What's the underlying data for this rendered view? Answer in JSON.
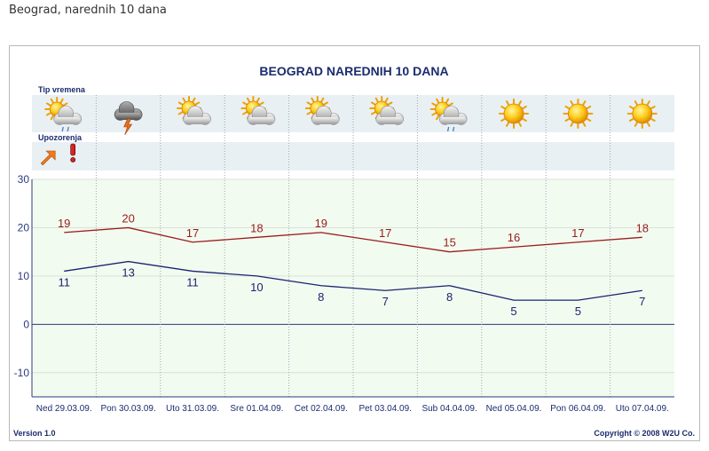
{
  "page": {
    "heading": "Beograd, narednih 10 dana"
  },
  "chart_data": {
    "type": "line",
    "title": "BEOGRAD NAREDNIH 10 DANA",
    "weather_row_label": "Tip vremena",
    "warnings_row_label": "Upozorenja",
    "categories": [
      "Ned 29.03.09.",
      "Pon 30.03.09.",
      "Uto 31.03.09.",
      "Sre 01.04.09.",
      "Cet 02.04.09.",
      "Pet 03.04.09.",
      "Sub 04.04.09.",
      "Ned 05.04.09.",
      "Pon 06.04.09.",
      "Uto 07.04.09."
    ],
    "weather_icons": [
      "partly-cloudy-rain-icon",
      "thunderstorm-icon",
      "partly-cloudy-icon",
      "partly-cloudy-icon",
      "partly-cloudy-icon",
      "partly-cloudy-icon",
      "partly-cloudy-rain-icon",
      "sunny-icon",
      "sunny-icon",
      "sunny-icon"
    ],
    "warnings": [
      [
        "wind-arrow-icon",
        "exclamation-icon"
      ],
      [],
      [],
      [],
      [],
      [],
      [],
      [],
      [],
      []
    ],
    "series": [
      {
        "values": [
          19,
          20,
          17,
          18,
          19,
          17,
          15,
          16,
          17,
          18
        ],
        "color": "#9b1b1b"
      },
      {
        "values": [
          11,
          13,
          11,
          10,
          8,
          7,
          8,
          5,
          5,
          7
        ],
        "color": "#1a2470"
      }
    ],
    "yticks": [
      30,
      20,
      10,
      0,
      -10
    ],
    "ylim": [
      -15,
      30
    ],
    "grid": true,
    "colors": {
      "plot_bg": "#f2fbf0",
      "band_bg": "#e8f0f4",
      "zero_line": "#2b3a80",
      "axis": "#2b3a80"
    },
    "version_label": "Version 1.0",
    "copyright": "Copyright © 2008 W2U Co."
  }
}
